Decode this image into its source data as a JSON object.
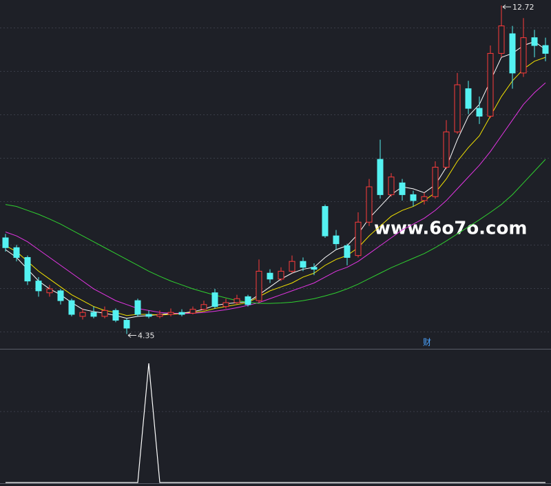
{
  "chart_data": [
    {
      "type": "candlestick",
      "ylim": [
        3.99,
        12.86
      ],
      "up_color": "#ff3b3b",
      "down_color": "#54f2f2",
      "open": [
        6.8,
        6.55,
        6.3,
        5.7,
        5.4,
        5.45,
        5.2,
        4.8,
        4.9,
        4.8,
        4.95,
        4.7,
        5.2,
        4.85,
        4.8,
        4.85,
        4.9,
        4.88,
        4.98,
        5.4,
        5.05,
        5.15,
        5.3,
        5.2,
        5.9,
        5.75,
        5.95,
        6.2,
        6.05,
        7.6,
        6.85,
        6.6,
        6.35,
        7.2,
        8.8,
        7.9,
        8.2,
        7.9,
        7.75,
        7.85,
        8.6,
        9.5,
        10.6,
        10.1,
        9.9,
        11.5,
        12.0,
        11.0,
        11.9,
        11.7
      ],
      "high": [
        6.9,
        6.62,
        6.35,
        5.8,
        5.6,
        5.5,
        5.25,
        5.0,
        5.05,
        5.05,
        5.0,
        4.75,
        5.25,
        4.95,
        4.95,
        5.0,
        4.98,
        5.05,
        5.2,
        5.5,
        5.25,
        5.35,
        5.35,
        6.25,
        6.0,
        6.05,
        6.35,
        6.3,
        6.15,
        7.65,
        7.0,
        6.65,
        7.45,
        8.3,
        9.3,
        8.45,
        8.3,
        8.0,
        7.95,
        8.75,
        9.8,
        11.0,
        10.8,
        10.4,
        11.7,
        12.72,
        12.2,
        12.4,
        12.1,
        11.9
      ],
      "low": [
        6.45,
        6.2,
        5.6,
        5.3,
        5.3,
        5.1,
        4.8,
        4.72,
        4.75,
        4.75,
        4.65,
        4.35,
        4.8,
        4.75,
        4.75,
        4.8,
        4.8,
        4.85,
        4.95,
        5.0,
        5.0,
        5.1,
        5.05,
        5.15,
        5.65,
        5.7,
        5.9,
        5.95,
        5.85,
        6.8,
        6.5,
        6.1,
        6.3,
        7.1,
        7.8,
        7.85,
        7.75,
        7.6,
        7.65,
        7.8,
        8.55,
        9.45,
        9.95,
        9.7,
        9.85,
        11.4,
        10.6,
        10.9,
        11.4,
        11.3
      ],
      "close": [
        6.55,
        6.3,
        5.7,
        5.45,
        5.5,
        5.2,
        4.85,
        4.9,
        4.8,
        4.95,
        4.7,
        4.5,
        4.85,
        4.8,
        4.85,
        4.9,
        4.85,
        4.98,
        5.1,
        5.05,
        5.15,
        5.25,
        5.1,
        5.95,
        5.75,
        5.95,
        6.2,
        6.05,
        6.0,
        6.85,
        6.65,
        6.3,
        7.2,
        8.1,
        7.9,
        8.35,
        7.9,
        7.75,
        7.85,
        8.6,
        9.5,
        10.7,
        10.1,
        9.9,
        11.5,
        12.2,
        11.0,
        11.9,
        11.7,
        11.5
      ],
      "lines": [
        {
          "color": "#ffffff",
          "values": [
            6.5,
            6.3,
            6.0,
            5.7,
            5.5,
            5.35,
            5.15,
            4.98,
            4.92,
            4.88,
            4.82,
            4.75,
            4.8,
            4.82,
            4.85,
            4.87,
            4.88,
            4.92,
            4.98,
            5.08,
            5.12,
            5.15,
            5.17,
            5.35,
            5.55,
            5.75,
            5.9,
            6.0,
            6.05,
            6.3,
            6.5,
            6.6,
            6.9,
            7.3,
            7.6,
            7.9,
            8.1,
            8.05,
            7.95,
            8.15,
            8.6,
            9.3,
            9.9,
            10.2,
            10.8,
            11.4,
            11.5,
            11.7,
            11.8,
            11.6
          ]
        },
        {
          "color": "#f5e400",
          "values": [
            6.6,
            6.45,
            6.2,
            5.95,
            5.75,
            5.55,
            5.35,
            5.2,
            5.05,
            4.95,
            4.9,
            4.82,
            4.85,
            4.85,
            4.83,
            4.85,
            4.87,
            4.9,
            4.93,
            5.0,
            5.05,
            5.1,
            5.15,
            5.3,
            5.45,
            5.55,
            5.65,
            5.8,
            5.9,
            6.1,
            6.25,
            6.35,
            6.55,
            6.85,
            7.1,
            7.35,
            7.5,
            7.6,
            7.75,
            7.95,
            8.3,
            8.75,
            9.1,
            9.4,
            9.9,
            10.4,
            10.8,
            11.1,
            11.3,
            11.4
          ]
        },
        {
          "color": "#e535e5",
          "values": [
            6.95,
            6.85,
            6.7,
            6.5,
            6.3,
            6.1,
            5.9,
            5.7,
            5.5,
            5.35,
            5.2,
            5.1,
            5.0,
            4.95,
            4.9,
            4.88,
            4.87,
            4.88,
            4.9,
            4.93,
            4.97,
            5.02,
            5.08,
            5.15,
            5.25,
            5.35,
            5.45,
            5.55,
            5.65,
            5.8,
            5.95,
            6.05,
            6.2,
            6.4,
            6.6,
            6.8,
            7.0,
            7.15,
            7.3,
            7.5,
            7.75,
            8.05,
            8.35,
            8.65,
            9.0,
            9.4,
            9.8,
            10.2,
            10.5,
            10.75
          ]
        },
        {
          "color": "#2fd12f",
          "values": [
            7.65,
            7.6,
            7.5,
            7.4,
            7.28,
            7.15,
            7.0,
            6.85,
            6.7,
            6.55,
            6.4,
            6.25,
            6.1,
            5.95,
            5.82,
            5.7,
            5.6,
            5.5,
            5.42,
            5.34,
            5.27,
            5.2,
            5.16,
            5.13,
            5.13,
            5.14,
            5.16,
            5.2,
            5.25,
            5.32,
            5.4,
            5.5,
            5.62,
            5.76,
            5.9,
            6.04,
            6.16,
            6.28,
            6.4,
            6.55,
            6.72,
            6.9,
            7.08,
            7.26,
            7.45,
            7.65,
            7.9,
            8.2,
            8.5,
            8.8
          ]
        }
      ],
      "watermark": "www.6o7o.com",
      "marker_label": "财"
    },
    {
      "type": "line",
      "color": "#ffffff",
      "ylim": [
        0,
        1
      ],
      "values": [
        0,
        0,
        0,
        0,
        0,
        0,
        0,
        0,
        0,
        0,
        0,
        0,
        0,
        1,
        0,
        0,
        0,
        0,
        0,
        0,
        0,
        0,
        0,
        0,
        0,
        0,
        0,
        0,
        0,
        0,
        0,
        0,
        0,
        0,
        0,
        0,
        0,
        0,
        0,
        0,
        0,
        0,
        0,
        0,
        0,
        0,
        0,
        0,
        0,
        0
      ]
    }
  ]
}
